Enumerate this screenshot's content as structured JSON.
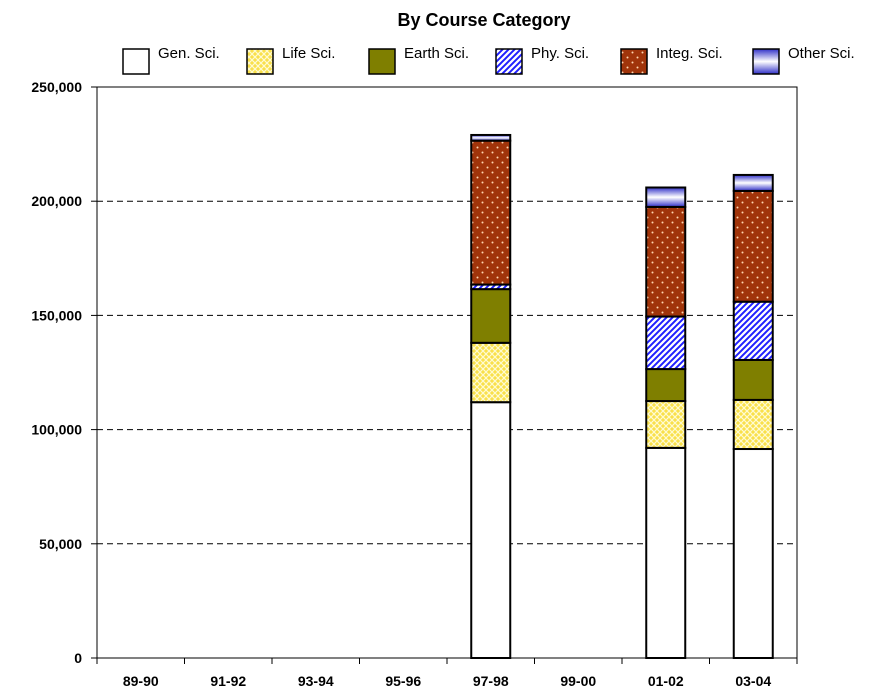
{
  "chart_data": {
    "type": "bar",
    "stacked": true,
    "title": "By Course Category",
    "categories": [
      "89-90",
      "91-92",
      "93-94",
      "95-96",
      "97-98",
      "99-00",
      "01-02",
      "03-04"
    ],
    "series": [
      {
        "name": "Gen. Sci.",
        "values": [
          null,
          null,
          null,
          null,
          112000,
          null,
          92000,
          91500
        ]
      },
      {
        "name": "Life Sci.",
        "values": [
          null,
          null,
          null,
          null,
          26000,
          null,
          20500,
          21500
        ]
      },
      {
        "name": "Earth Sci.",
        "values": [
          null,
          null,
          null,
          null,
          23500,
          null,
          14000,
          17500
        ]
      },
      {
        "name": "Phy. Sci.",
        "values": [
          null,
          null,
          null,
          null,
          2000,
          null,
          23000,
          25500
        ]
      },
      {
        "name": "Integ. Sci.",
        "values": [
          null,
          null,
          null,
          null,
          63000,
          null,
          48000,
          48500
        ]
      },
      {
        "name": "Other Sci.",
        "values": [
          null,
          null,
          null,
          null,
          2500,
          null,
          8500,
          7000
        ]
      }
    ],
    "ylim": [
      0,
      250000
    ],
    "yticks": [
      0,
      50000,
      100000,
      150000,
      200000,
      250000
    ],
    "ytick_labels": [
      "0",
      "50,000",
      "100,000",
      "150,000",
      "200,000",
      "250,000"
    ],
    "grid": "horizontal dashed",
    "legend_position": "top"
  },
  "colors": {
    "gen": "#ffffff",
    "life": "#f9e04a",
    "life_dot": "#fffbd0",
    "earth": "#7f7f00",
    "phys_bg": "#ffffff",
    "phys_line": "#2020ff",
    "integ": "#a0340a",
    "integ_dot": "#ffd6b0",
    "other_edge": "#3030c8",
    "other_mid": "#ffffff"
  }
}
